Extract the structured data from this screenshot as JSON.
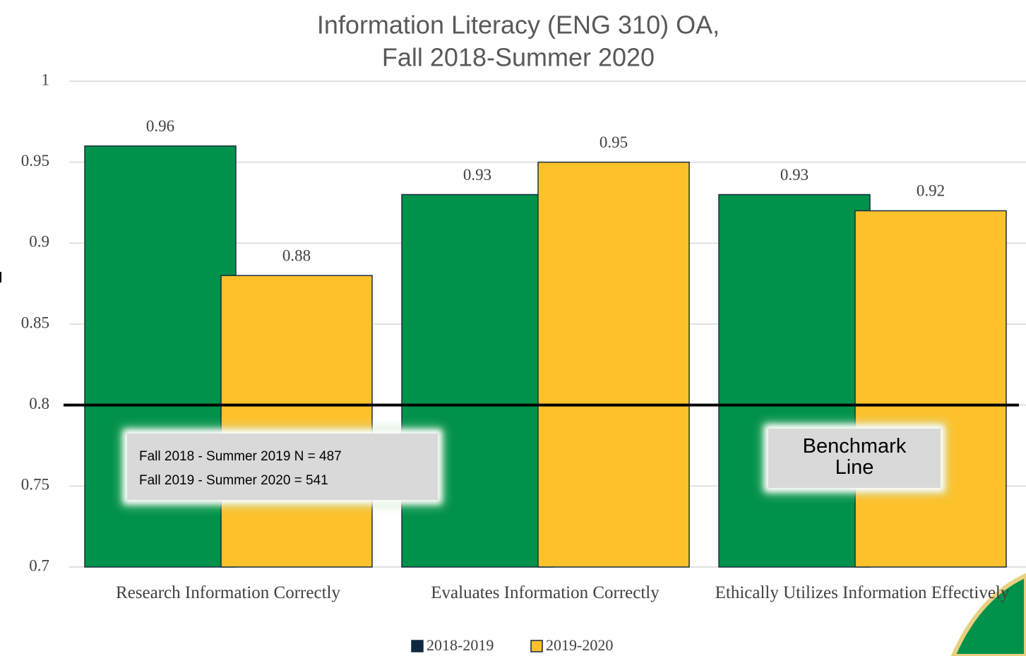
{
  "chart_data": {
    "type": "bar",
    "title": [
      "Information Literacy (ENG 310) OA,",
      "Fall 2018-Summer 2020"
    ],
    "categories": [
      "Research Information Correctly",
      "Evaluates Information Correctly",
      "Ethically Utilizes Information Effectively"
    ],
    "series": [
      {
        "name": "2018-2019",
        "color": "#00914a",
        "legend_color": "#0e2841",
        "values": [
          0.96,
          0.93,
          0.93
        ]
      },
      {
        "name": "2019-2020",
        "color": "#fdc12b",
        "legend_color": "#fdc12b",
        "values": [
          0.88,
          0.95,
          0.92
        ]
      }
    ],
    "ylim": [
      0.7,
      1
    ],
    "yticks": [
      0.7,
      0.75,
      0.8,
      0.85,
      0.9,
      0.95,
      1
    ],
    "grid": true,
    "benchmark": 0.8,
    "benchmark_label": "Benchmark Line",
    "notes": [
      "Fall 2018 - Summer 2019 N = 487",
      "Fall 2019 - Summer 2020 = 541"
    ],
    "legend": "bottom"
  }
}
